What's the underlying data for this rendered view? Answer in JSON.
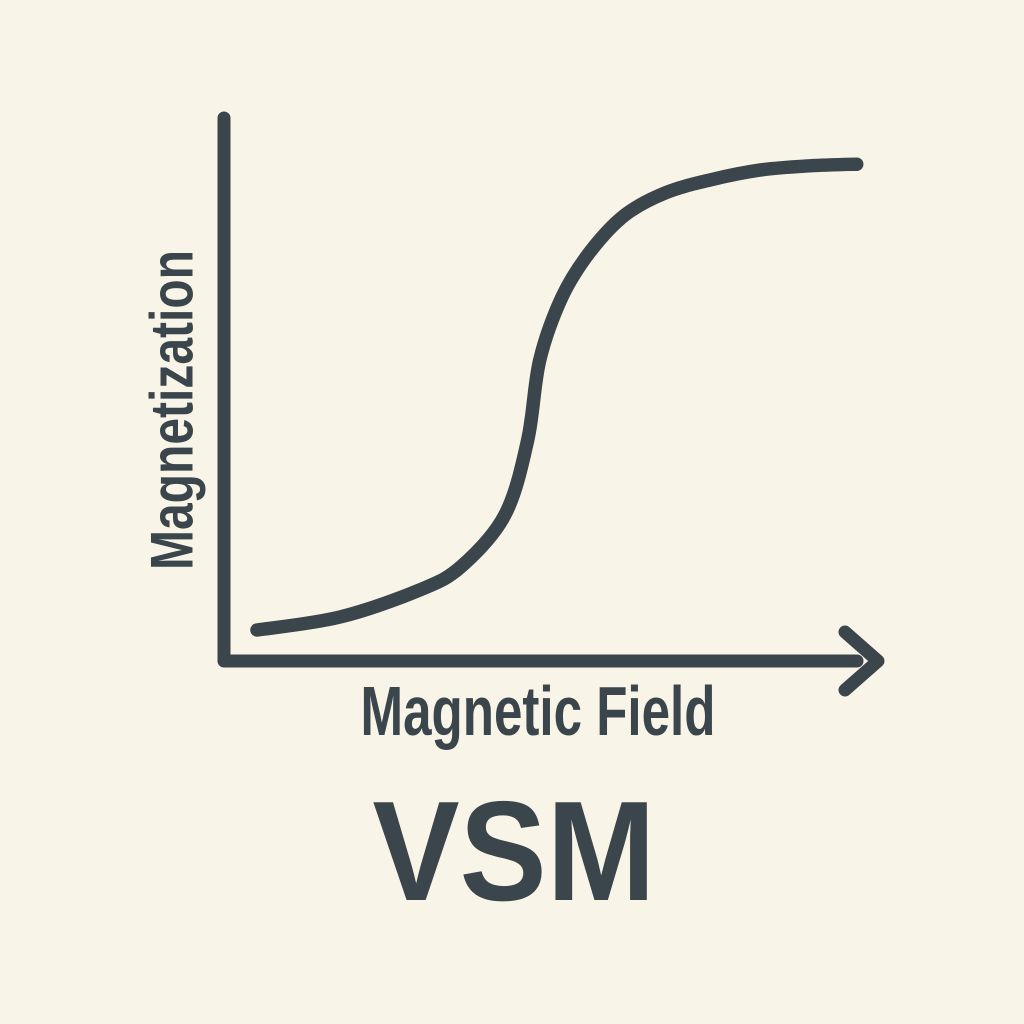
{
  "figure": {
    "y_axis_label": "Magnetization",
    "x_axis_label": "Magnetic Field",
    "title": "VSM"
  },
  "colors": {
    "ink": "#3a464b",
    "background": "#f9f4e8"
  },
  "chart_data": {
    "type": "line",
    "title": "VSM",
    "xlabel": "Magnetic Field",
    "ylabel": "Magnetization",
    "description": "Stylized VSM (vibrating-sample magnetometer) sketch: sigmoid magnetization curve rising from near zero to saturation as magnetic field increases. No tick marks, no gridlines, arrowhead on x-axis only.",
    "axes": {
      "x_range": [
        0,
        1
      ],
      "y_range": [
        0,
        1
      ],
      "ticks": "none",
      "grid": false,
      "arrow_on_x_axis": true
    },
    "series": [
      {
        "name": "magnetization-curve",
        "x": [
          0.052,
          0.183,
          0.309,
          0.375,
          0.443,
          0.479,
          0.498,
          0.533,
          0.577,
          0.632,
          0.696,
          0.767,
          0.845,
          0.924,
          0.998
        ],
        "y": [
          0.057,
          0.081,
          0.131,
          0.175,
          0.269,
          0.407,
          0.554,
          0.67,
          0.753,
          0.821,
          0.862,
          0.886,
          0.904,
          0.912,
          0.915
        ]
      }
    ],
    "legend": "none"
  }
}
